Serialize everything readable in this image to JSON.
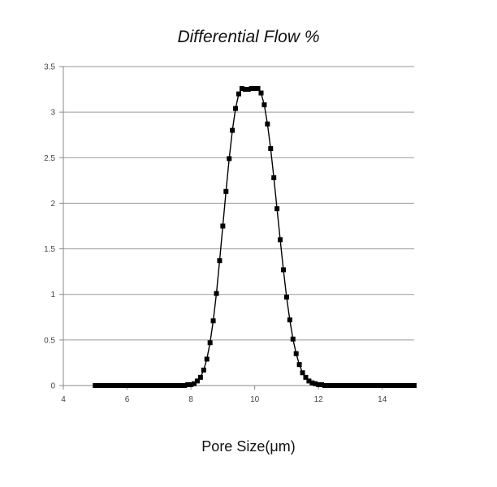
{
  "chart_data": {
    "type": "scatter",
    "title": "Differential Flow %",
    "xlabel": "Pore Size(μm)",
    "ylabel": "",
    "xlim": [
      4,
      15
    ],
    "ylim": [
      0,
      3.5
    ],
    "xticks": [
      "4",
      "6",
      "8",
      "10",
      "12",
      "14"
    ],
    "yticks": [
      "0",
      "0.5",
      "1",
      "1.5",
      "2",
      "2.5",
      "3",
      "3.5"
    ],
    "grid": "horizontal",
    "legend": "none",
    "marker": "square",
    "line": true,
    "color": "#000000",
    "x": [
      5.0,
      5.1,
      5.2,
      5.3,
      5.4,
      5.5,
      5.6,
      5.7,
      5.8,
      5.9,
      6.0,
      6.1,
      6.2,
      6.3,
      6.4,
      6.5,
      6.6,
      6.7,
      6.8,
      6.9,
      7.0,
      7.1,
      7.2,
      7.3,
      7.4,
      7.5,
      7.6,
      7.7,
      7.8,
      7.9,
      8.0,
      8.1,
      8.2,
      8.3,
      8.4,
      8.5,
      8.6,
      8.7,
      8.8,
      8.9,
      9.0,
      9.1,
      9.2,
      9.3,
      9.4,
      9.5,
      9.6,
      9.7,
      9.8,
      9.9,
      10.0,
      10.1,
      10.2,
      10.3,
      10.4,
      10.5,
      10.6,
      10.7,
      10.8,
      10.9,
      11.0,
      11.1,
      11.2,
      11.3,
      11.4,
      11.5,
      11.6,
      11.7,
      11.8,
      11.9,
      12.0,
      12.1,
      12.2,
      12.3,
      12.4,
      12.5,
      12.6,
      12.7,
      12.8,
      12.9,
      13.0,
      13.1,
      13.2,
      13.3,
      13.4,
      13.5,
      13.6,
      13.7,
      13.8,
      13.9,
      14.0,
      14.1,
      14.2,
      14.3,
      14.4,
      14.5,
      14.6,
      14.7,
      14.8,
      14.9,
      15.0
    ],
    "y": [
      0,
      0,
      0,
      0,
      0,
      0,
      0,
      0,
      0,
      0,
      0,
      0,
      0,
      0,
      0,
      0,
      0,
      0,
      0,
      0,
      0,
      0,
      0,
      0,
      0,
      0,
      0,
      0,
      0,
      0.01,
      0.01,
      0.02,
      0.05,
      0.09,
      0.17,
      0.29,
      0.47,
      0.71,
      1.01,
      1.37,
      1.75,
      2.13,
      2.49,
      2.8,
      3.04,
      3.2,
      3.26,
      3.25,
      3.25,
      3.26,
      3.26,
      3.26,
      3.21,
      3.08,
      2.87,
      2.6,
      2.28,
      1.94,
      1.6,
      1.27,
      0.97,
      0.72,
      0.51,
      0.35,
      0.23,
      0.14,
      0.09,
      0.05,
      0.03,
      0.02,
      0.01,
      0.01,
      0,
      0,
      0,
      0,
      0,
      0,
      0,
      0,
      0,
      0,
      0,
      0,
      0,
      0,
      0,
      0,
      0,
      0,
      0,
      0,
      0,
      0,
      0,
      0,
      0,
      0,
      0,
      0,
      0
    ]
  }
}
